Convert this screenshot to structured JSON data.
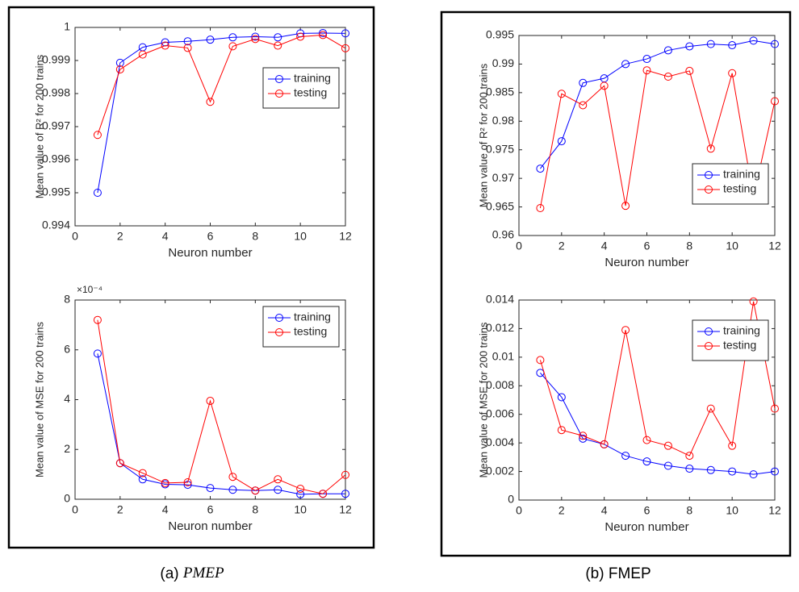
{
  "chart_data": [
    {
      "type": "line",
      "xlabel": "Neuron number",
      "ylabel": "Mean value of R² for 200 trains",
      "x": [
        1,
        2,
        3,
        4,
        5,
        6,
        7,
        8,
        9,
        10,
        11,
        12
      ],
      "xlim": [
        0,
        12
      ],
      "xticks": [
        0,
        2,
        4,
        6,
        8,
        10,
        12
      ],
      "ylim": [
        0.994,
        1
      ],
      "yticks": [
        0.994,
        0.995,
        0.996,
        0.997,
        0.998,
        0.999,
        1
      ],
      "legend": "east",
      "series": [
        {
          "name": "training",
          "color": "#0000ff",
          "values": [
            0.995,
            0.99893,
            0.9994,
            0.99955,
            0.99958,
            0.99963,
            0.9997,
            0.99972,
            0.9997,
            0.99982,
            0.99983,
            0.99982
          ]
        },
        {
          "name": "testing",
          "color": "#ff0000",
          "values": [
            0.99675,
            0.99873,
            0.99918,
            0.99945,
            0.99938,
            0.99775,
            0.99943,
            0.99965,
            0.99945,
            0.99972,
            0.99977,
            0.99937
          ]
        }
      ]
    },
    {
      "type": "line",
      "xlabel": "Neuron number",
      "ylabel": "Mean value of MSE for 200 trains",
      "y_exponent_label": "×10⁻⁴",
      "x": [
        1,
        2,
        3,
        4,
        5,
        6,
        7,
        8,
        9,
        10,
        11,
        12
      ],
      "xlim": [
        0,
        12
      ],
      "xticks": [
        0,
        2,
        4,
        6,
        8,
        10,
        12
      ],
      "ylim": [
        0,
        8
      ],
      "yticks": [
        0,
        2,
        4,
        6,
        8
      ],
      "legend": "northeast",
      "series": [
        {
          "name": "training",
          "color": "#0000ff",
          "values": [
            5.85,
            1.45,
            0.8,
            0.6,
            0.58,
            0.45,
            0.38,
            0.35,
            0.38,
            0.2,
            0.22,
            0.22
          ]
        },
        {
          "name": "testing",
          "color": "#ff0000",
          "values": [
            7.2,
            1.45,
            1.05,
            0.65,
            0.68,
            3.95,
            0.9,
            0.35,
            0.8,
            0.42,
            0.22,
            0.98
          ]
        }
      ]
    },
    {
      "type": "line",
      "xlabel": "Neuron number",
      "ylabel": "Mean value of R² for 200 trains",
      "x": [
        1,
        2,
        3,
        4,
        5,
        6,
        7,
        8,
        9,
        10,
        11,
        12
      ],
      "xlim": [
        0,
        12
      ],
      "xticks": [
        0,
        2,
        4,
        6,
        8,
        10,
        12
      ],
      "ylim": [
        0.96,
        0.995
      ],
      "yticks": [
        0.96,
        0.965,
        0.97,
        0.975,
        0.98,
        0.985,
        0.99,
        0.995
      ],
      "legend": "east",
      "series": [
        {
          "name": "training",
          "color": "#0000ff",
          "values": [
            0.9717,
            0.9765,
            0.9867,
            0.9875,
            0.99,
            0.9909,
            0.9924,
            0.9931,
            0.9935,
            0.9933,
            0.9941,
            0.9935
          ]
        },
        {
          "name": "testing",
          "color": "#ff0000",
          "values": [
            0.9648,
            0.9848,
            0.9828,
            0.9862,
            0.9652,
            0.9889,
            0.9878,
            0.9888,
            0.9752,
            0.9884,
            0.9667,
            0.9835
          ]
        }
      ]
    },
    {
      "type": "line",
      "xlabel": "Neuron number",
      "ylabel": "Mean value of MSE for 200 trains",
      "x": [
        1,
        2,
        3,
        4,
        5,
        6,
        7,
        8,
        9,
        10,
        11,
        12
      ],
      "xlim": [
        0,
        12
      ],
      "xticks": [
        0,
        2,
        4,
        6,
        8,
        10,
        12
      ],
      "ylim": [
        0,
        0.014
      ],
      "yticks": [
        0,
        0.002,
        0.004,
        0.006,
        0.008,
        0.01,
        0.012,
        0.014
      ],
      "legend": "northeast",
      "series": [
        {
          "name": "training",
          "color": "#0000ff",
          "values": [
            0.0089,
            0.0072,
            0.0043,
            0.0039,
            0.0031,
            0.0027,
            0.0024,
            0.0022,
            0.0021,
            0.002,
            0.0018,
            0.002
          ]
        },
        {
          "name": "testing",
          "color": "#ff0000",
          "values": [
            0.0098,
            0.0049,
            0.0045,
            0.0039,
            0.0119,
            0.0042,
            0.0038,
            0.0031,
            0.0064,
            0.0038,
            0.0139,
            0.0064
          ]
        }
      ]
    }
  ],
  "captions": [
    {
      "label": "(a)",
      "name": "PMEP"
    },
    {
      "label": "(b)",
      "name": "FMEP"
    }
  ]
}
